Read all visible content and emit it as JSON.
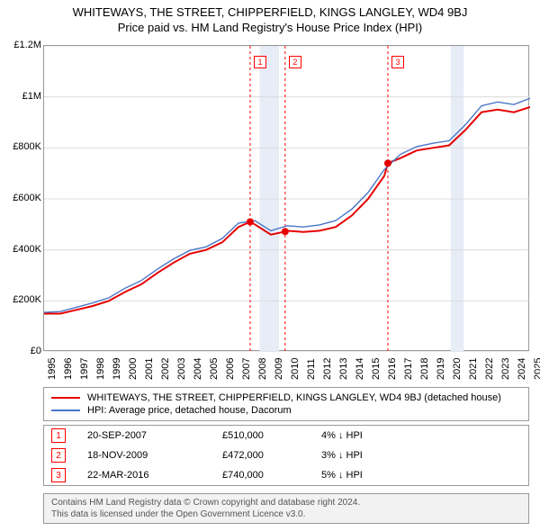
{
  "title": {
    "line1": "WHITEWAYS, THE STREET, CHIPPERFIELD, KINGS LANGLEY, WD4 9BJ",
    "line2": "Price paid vs. HM Land Registry's House Price Index (HPI)"
  },
  "chart": {
    "type": "line",
    "background_color": "#ffffff",
    "border_color": "#999999",
    "grid_color": "#dcdcdc",
    "band_color": "#e6edf7",
    "ylim": [
      0,
      1200000
    ],
    "yticks": [
      0,
      200000,
      400000,
      600000,
      800000,
      1000000,
      1200000
    ],
    "ytick_labels": [
      "£0",
      "£200K",
      "£400K",
      "£600K",
      "£800K",
      "£1M",
      "£1.2M"
    ],
    "x_years": [
      1995,
      1996,
      1997,
      1998,
      1999,
      2000,
      2001,
      2002,
      2003,
      2004,
      2005,
      2006,
      2007,
      2008,
      2009,
      2010,
      2011,
      2012,
      2013,
      2014,
      2015,
      2016,
      2017,
      2018,
      2019,
      2020,
      2021,
      2022,
      2023,
      2024,
      2025
    ],
    "tick_fontsize": 11,
    "series": [
      {
        "name": "WHITEWAYS, THE STREET, CHIPPERFIELD, KINGS LANGLEY, WD4 9BJ (detached house)",
        "color": "#e60000",
        "line_width": 2.0,
        "values_by_year": {
          "1995": 150000,
          "1996": 150000,
          "1997": 165000,
          "1998": 180000,
          "1999": 200000,
          "2000": 235000,
          "2001": 265000,
          "2002": 310000,
          "2003": 350000,
          "2004": 385000,
          "2005": 400000,
          "2006": 430000,
          "2007": 490000,
          "2007.72": 510000,
          "2008": 500000,
          "2009": 460000,
          "2009.88": 472000,
          "2010": 475000,
          "2011": 470000,
          "2012": 475000,
          "2013": 490000,
          "2014": 535000,
          "2015": 600000,
          "2016": 690000,
          "2016.22": 740000,
          "2017": 760000,
          "2018": 790000,
          "2019": 800000,
          "2020": 810000,
          "2021": 870000,
          "2022": 940000,
          "2023": 950000,
          "2024": 940000,
          "2025": 960000
        }
      },
      {
        "name": "HPI: Average price, detached house, Dacorum",
        "color": "#4a76c7",
        "line_width": 1.4,
        "values_by_year": {
          "1995": 155000,
          "1996": 158000,
          "1997": 175000,
          "1998": 192000,
          "1999": 212000,
          "2000": 250000,
          "2001": 280000,
          "2002": 325000,
          "2003": 365000,
          "2004": 398000,
          "2005": 412000,
          "2006": 445000,
          "2007": 505000,
          "2008": 515000,
          "2009": 475000,
          "2010": 495000,
          "2011": 490000,
          "2012": 498000,
          "2013": 515000,
          "2014": 560000,
          "2015": 625000,
          "2016": 715000,
          "2017": 775000,
          "2018": 805000,
          "2019": 818000,
          "2020": 828000,
          "2021": 890000,
          "2022": 965000,
          "2023": 980000,
          "2024": 970000,
          "2025": 995000
        }
      }
    ],
    "markers": [
      {
        "label": "1",
        "x_year": 2007.72,
        "y_value": 510000,
        "dashed_line": true
      },
      {
        "label": "2",
        "x_year": 2009.88,
        "y_value": 472000,
        "dashed_line": true
      },
      {
        "label": "3",
        "x_year": 2016.22,
        "y_value": 740000,
        "dashed_line": true
      }
    ],
    "recession_bands": [
      {
        "from_year": 2008.3,
        "to_year": 2009.5
      },
      {
        "from_year": 2020.1,
        "to_year": 2020.9
      }
    ],
    "marker_dot_color": "#e60000",
    "marker_dot_radius": 4,
    "marker_box_border": "#ff0000",
    "dashed_line_color": "#ff0000"
  },
  "legend": {
    "items": [
      {
        "color": "#e60000",
        "width": 2.0,
        "label": "WHITEWAYS, THE STREET, CHIPPERFIELD, KINGS LANGLEY, WD4 9BJ (detached house)"
      },
      {
        "color": "#4a76c7",
        "width": 1.4,
        "label": "HPI: Average price, detached house, Dacorum"
      }
    ]
  },
  "transactions": [
    {
      "marker": "1",
      "date": "20-SEP-2007",
      "price": "£510,000",
      "pct": "4% ↓ HPI"
    },
    {
      "marker": "2",
      "date": "18-NOV-2009",
      "price": "£472,000",
      "pct": "3% ↓ HPI"
    },
    {
      "marker": "3",
      "date": "22-MAR-2016",
      "price": "£740,000",
      "pct": "5% ↓ HPI"
    }
  ],
  "footer": {
    "line1": "Contains HM Land Registry data © Crown copyright and database right 2024.",
    "line2": "This data is licensed under the Open Government Licence v3.0."
  }
}
